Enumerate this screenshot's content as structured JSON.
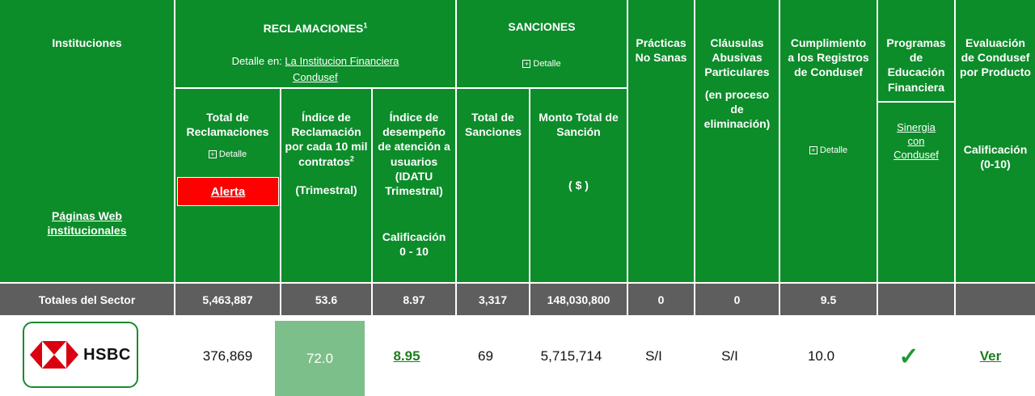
{
  "header": {
    "instituciones": "Instituciones",
    "paginas_web": "Páginas Web institucionales",
    "reclamaciones": {
      "title": "RECLAMACIONES",
      "title_sup": "1",
      "detalle_prefix": "Detalle en:",
      "link1": "La Institucion Financiera",
      "link2": "Condusef"
    },
    "sanciones": {
      "title": "SANCIONES",
      "detalle": "Detalle"
    },
    "practicas": "Prácticas No Sanas",
    "clausulas": "Cláusulas Abusivas Particulares",
    "clausulas_sub": "(en proceso de eliminación)",
    "cumplimiento": "Cumplimiento a los Registros de Condusef",
    "cumplimiento_detalle": "Detalle",
    "programas": "Programas de Educación Financiera",
    "programas_link": "Sinergia con Condusef",
    "evaluacion": "Evaluación de Condusef por Producto",
    "evaluacion_sub": "Calificación (0-10)",
    "total_reclamaciones": "Total de Reclamaciones",
    "total_reclamaciones_detalle": "Detalle",
    "alerta": "Alerta",
    "indice_reclamacion": "Índice de Reclamación por cada 10 mil contratos",
    "indice_reclamacion_sup": "2",
    "indice_reclamacion_sub": "(Trimestral)",
    "indice_desempeno": "Índice de desempeño de atención a usuarios (IDATU Trimestral)",
    "indice_desempeno_sub": "Calificación 0 - 10",
    "total_sanciones": "Total de Sanciones",
    "monto_total": "Monto Total de Sanción",
    "monto_unit": "( $ )"
  },
  "totales": {
    "label": "Totales del Sector",
    "values": [
      "5,463,887",
      "53.6",
      "8.97",
      "3,317",
      "148,030,800",
      "0",
      "0",
      "9.5",
      "",
      ""
    ]
  },
  "row": {
    "logo_text": "HSBC",
    "total_reclamaciones": "376,869",
    "indice_reclamacion": "72.0",
    "indice_desempeno": "8.95",
    "total_sanciones": "69",
    "monto": "5,715,714",
    "practicas": "S/I",
    "clausulas": "S/I",
    "cumplimiento": "10.0",
    "programas_icon": "checkmark-icon",
    "evaluacion": "Ver"
  },
  "colors": {
    "header_green": "#0d8c2a",
    "totals_gray": "#5e5e5e",
    "alert_red": "#ff0000",
    "highlight_green": "#7dbf8a",
    "link_green": "#1e7d1e",
    "hsbc_red": "#db0011"
  }
}
